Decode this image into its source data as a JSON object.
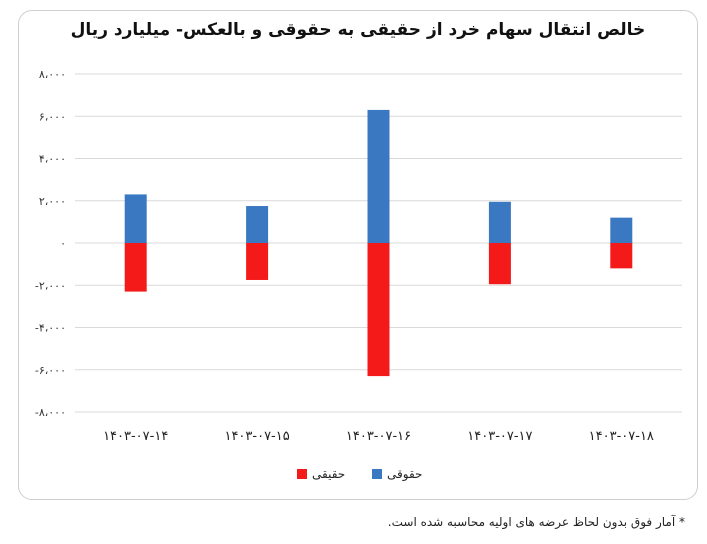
{
  "title": "خالص انتقال سهام خرد از حقیقی به حقوقی و بالعکس- میلیارد ریال",
  "footnote": "* آمار فوق بدون لحاظ عرضه های اولیه محاسبه شده است.",
  "chart_data": {
    "type": "bar",
    "title": "خالص انتقال سهام خرد از حقیقی به حقوقی و بالعکس- میلیارد ریال",
    "categories": [
      "۱۴۰۳-۰۷-۱۴",
      "۱۴۰۳-۰۷-۱۵",
      "۱۴۰۳-۰۷-۱۶",
      "۱۴۰۳-۰۷-۱۷",
      "۱۴۰۳-۰۷-۱۸"
    ],
    "series": [
      {
        "name": "حقوقی",
        "color": "#3a78c2",
        "values": [
          2300,
          1750,
          6300,
          1950,
          1200
        ]
      },
      {
        "name": "حقیقی",
        "color": "#f41a1a",
        "values": [
          -2300,
          -1750,
          -6300,
          -1950,
          -1200
        ]
      }
    ],
    "ylim": [
      -8000,
      8000
    ],
    "yticks": [
      -8000,
      -6000,
      -4000,
      -2000,
      0,
      2000,
      4000,
      6000,
      8000
    ],
    "ytick_labels": [
      "-۸،۰۰۰",
      "-۶،۰۰۰",
      "-۴،۰۰۰",
      "-۲،۰۰۰",
      "۰",
      "۲،۰۰۰",
      "۴،۰۰۰",
      "۶،۰۰۰",
      "۸،۰۰۰"
    ],
    "grid": true,
    "legend": "bottom",
    "legend_order": [
      "حقوقی",
      "حقیقی"
    ]
  }
}
